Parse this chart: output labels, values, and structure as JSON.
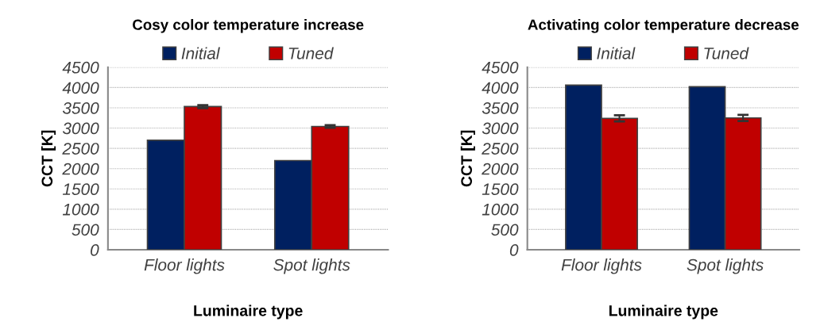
{
  "chart_data": [
    {
      "type": "bar",
      "title": "Cosy color temperature increase",
      "xlabel": "Luminaire type",
      "ylabel": "CCT [K]",
      "categories": [
        "Floor lights",
        "Spot lights"
      ],
      "series": [
        {
          "name": "Initial",
          "color": "#002060",
          "values": [
            2700,
            2200
          ]
        },
        {
          "name": "Tuned",
          "color": "#c00000",
          "values": [
            3530,
            3040
          ],
          "errors": [
            35,
            30
          ]
        }
      ],
      "ylim": [
        0,
        4500
      ],
      "yticks": [
        0,
        500,
        1000,
        1500,
        2000,
        2500,
        3000,
        3500,
        4000,
        4500
      ],
      "grid": "y",
      "legend": "top"
    },
    {
      "type": "bar",
      "title": "Activating color temperature decrease",
      "xlabel": "Luminaire type",
      "ylabel": "CCT [K]",
      "categories": [
        "Floor lights",
        "Spot lights"
      ],
      "series": [
        {
          "name": "Initial",
          "color": "#002060",
          "values": [
            4060,
            4020
          ]
        },
        {
          "name": "Tuned",
          "color": "#c00000",
          "values": [
            3240,
            3250
          ],
          "errors": [
            75,
            75
          ]
        }
      ],
      "ylim": [
        0,
        4500
      ],
      "yticks": [
        0,
        500,
        1000,
        1500,
        2000,
        2500,
        3000,
        3500,
        4000,
        4500
      ],
      "grid": "y",
      "legend": "top"
    }
  ]
}
